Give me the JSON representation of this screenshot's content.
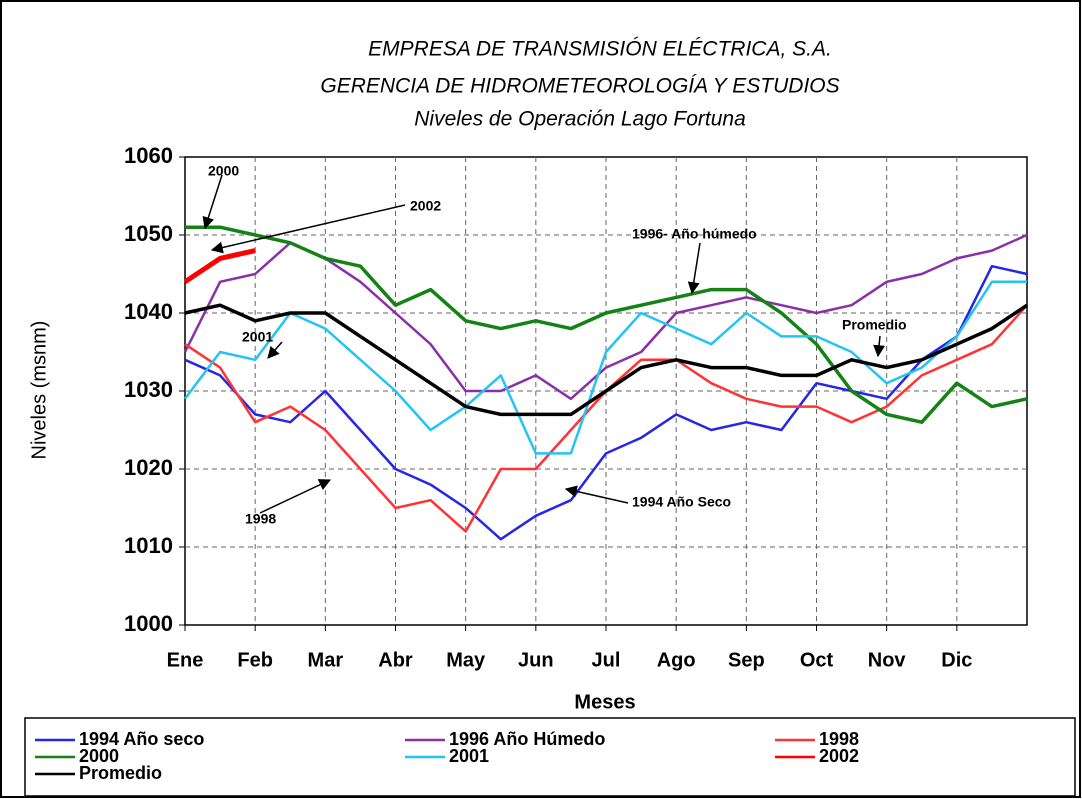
{
  "chart_data": {
    "type": "line",
    "title": [
      "EMPRESA DE TRANSMISIÓN ELÉCTRICA, S.A.",
      "GERENCIA DE HIDROMETEOROLOGÍA Y ESTUDIOS",
      "Niveles de Operación Lago Fortuna"
    ],
    "y_label": "Niveles (msnm)",
    "x_label": "Meses",
    "categories": [
      "Ene",
      null,
      "Feb",
      null,
      "Mar",
      null,
      "Abr",
      null,
      "May",
      null,
      "Jun",
      null,
      "Jul",
      null,
      "Ago",
      null,
      "Sep",
      null,
      "Oct",
      null,
      "Nov",
      null,
      "Dic",
      null,
      null
    ],
    "ylim": [
      1000,
      1060
    ],
    "yticks": [
      1000,
      1010,
      1020,
      1030,
      1040,
      1050,
      1060
    ],
    "grid": true,
    "series": [
      {
        "name": "1994 Año seco",
        "color": "#2626e6",
        "values": [
          1034,
          1032,
          1027,
          1026,
          1030,
          1025,
          1020,
          1018,
          1015,
          1011,
          1014,
          1016,
          1022,
          1024,
          1027,
          1025,
          1026,
          1025,
          1031,
          1030,
          1029,
          1034,
          1037,
          1046,
          1045
        ]
      },
      {
        "name": "1996 Año Húmedo",
        "color": "#8a2fa8",
        "values": [
          1035,
          1044,
          1045,
          1049,
          1047,
          1044,
          1040,
          1036,
          1030,
          1030,
          1032,
          1029,
          1033,
          1035,
          1040,
          1041,
          1042,
          1041,
          1040,
          1041,
          1044,
          1045,
          1047,
          1048,
          1050
        ]
      },
      {
        "name": "1998",
        "color": "#ff3333",
        "values": [
          1036,
          1033,
          1026,
          1028,
          1025,
          1020,
          1015,
          1016,
          1012,
          1020,
          1020,
          1025,
          1030,
          1034,
          1034,
          1031,
          1029,
          1028,
          1028,
          1026,
          1028,
          1032,
          1034,
          1036,
          1041
        ]
      },
      {
        "name": "2000",
        "color": "#148214",
        "values": [
          1051,
          1051,
          1050,
          1049,
          1047,
          1046,
          1041,
          1043,
          1039,
          1038,
          1039,
          1038,
          1040,
          1041,
          1042,
          1043,
          1043,
          1040,
          1036,
          1030,
          1027,
          1026,
          1031,
          1028,
          1029
        ]
      },
      {
        "name": "2001",
        "color": "#22c4f2",
        "values": [
          1029,
          1035,
          1034,
          1040,
          1038,
          1034,
          1030,
          1025,
          1028,
          1032,
          1022,
          1022,
          1035,
          1040,
          1038,
          1036,
          1040,
          1037,
          1037,
          1035,
          1031,
          1033,
          1037,
          1044,
          1044
        ]
      },
      {
        "name": "2002",
        "color": "#ff0000",
        "values": [
          1044,
          1047,
          1048,
          null,
          null,
          null,
          null,
          null,
          null,
          null,
          null,
          null,
          null,
          null,
          null,
          null,
          null,
          null,
          null,
          null,
          null,
          null,
          null,
          null,
          null
        ]
      },
      {
        "name": "Promedio",
        "color": "#000000",
        "values": [
          1040,
          1041,
          1039,
          1040,
          1040,
          1037,
          1034,
          1031,
          1028,
          1027,
          1027,
          1027,
          1030,
          1033,
          1034,
          1033,
          1033,
          1032,
          1032,
          1034,
          1033,
          1034,
          1036,
          1038,
          1041
        ]
      }
    ],
    "annotations": [
      "2000",
      "2002",
      "1996- Año húmedo",
      "Promedio",
      "2001",
      "1998",
      "1994 Año Seco"
    ]
  }
}
